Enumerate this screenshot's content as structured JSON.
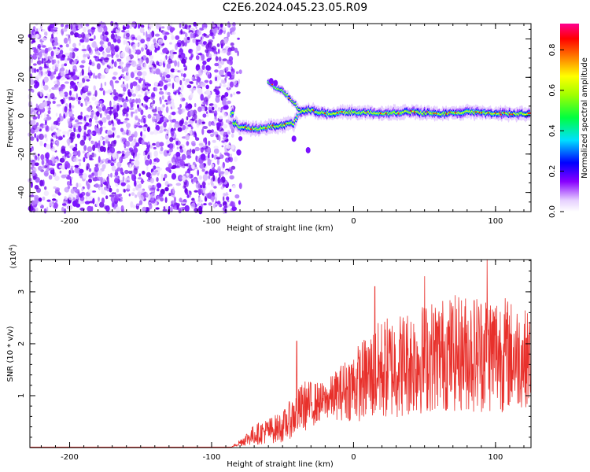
{
  "title": "C2E6.2024.045.23.05.R09",
  "colors": {
    "snr_line": "#e8302b",
    "scatter_purple": "#6a00e8",
    "axis": "#000000"
  },
  "chart_data": [
    {
      "type": "heatmap",
      "name": "spectrogram",
      "xlabel": "Height of straight line (km)",
      "ylabel": "Frequency (Hz)",
      "xlim": [
        -228,
        125
      ],
      "ylim": [
        -50,
        48
      ],
      "xticks": [
        -200,
        -100,
        0,
        100
      ],
      "yticks": [
        -40,
        -20,
        0,
        20,
        40
      ],
      "noise_region_x": [
        -228,
        -84
      ],
      "signal_track": [
        {
          "x": -85,
          "y": -3
        },
        {
          "x": -80,
          "y": -6
        },
        {
          "x": -70,
          "y": -7
        },
        {
          "x": -60,
          "y": -6
        },
        {
          "x": -50,
          "y": -5
        },
        {
          "x": -42,
          "y": -4
        },
        {
          "x": -38,
          "y": 2
        },
        {
          "x": -30,
          "y": 3
        },
        {
          "x": -20,
          "y": 1
        },
        {
          "x": 0,
          "y": 2
        },
        {
          "x": 20,
          "y": 1
        },
        {
          "x": 40,
          "y": 2
        },
        {
          "x": 60,
          "y": 1
        },
        {
          "x": 80,
          "y": 2
        },
        {
          "x": 100,
          "y": 1
        },
        {
          "x": 125,
          "y": 1
        }
      ],
      "branch_track": [
        {
          "x": -60,
          "y": 17
        },
        {
          "x": -50,
          "y": 13
        },
        {
          "x": -42,
          "y": 7
        },
        {
          "x": -38,
          "y": 3
        }
      ],
      "colorbar": {
        "label": "Normalized spectral amplitude",
        "ticks": [
          "0.0",
          "0.2",
          "0.4",
          "0.6",
          "0.8"
        ],
        "range": [
          0,
          0.93
        ]
      }
    },
    {
      "type": "line",
      "name": "snr",
      "xlabel": "Height of straight line (km)",
      "ylabel": "SNR (10 * v/v)",
      "scale_label": "(x10",
      "scale_exp": "4",
      "scale_close": ")",
      "xlim": [
        -228,
        125
      ],
      "ylim": [
        0,
        3.62
      ],
      "xticks": [
        -200,
        -100,
        0,
        100
      ],
      "yticks": [
        1,
        2,
        3
      ],
      "envelope": [
        {
          "x": -228,
          "mean": 0.01,
          "amp": 0.0
        },
        {
          "x": -86,
          "mean": 0.01,
          "amp": 0.0
        },
        {
          "x": -70,
          "mean": 0.25,
          "amp": 0.2
        },
        {
          "x": -50,
          "mean": 0.4,
          "amp": 0.3
        },
        {
          "x": -35,
          "mean": 0.8,
          "amp": 0.5
        },
        {
          "x": -20,
          "mean": 0.9,
          "amp": 0.35
        },
        {
          "x": 0,
          "mean": 1.2,
          "amp": 0.7
        },
        {
          "x": 20,
          "mean": 1.5,
          "amp": 1.0
        },
        {
          "x": 60,
          "mean": 1.8,
          "amp": 1.1
        },
        {
          "x": 100,
          "mean": 1.85,
          "amp": 1.2
        },
        {
          "x": 125,
          "mean": 1.7,
          "amp": 0.9
        }
      ],
      "peaks": [
        {
          "x": -40,
          "y": 2.05
        },
        {
          "x": 15,
          "y": 3.1
        },
        {
          "x": 50,
          "y": 3.3
        },
        {
          "x": 94,
          "y": 3.62
        }
      ]
    }
  ]
}
